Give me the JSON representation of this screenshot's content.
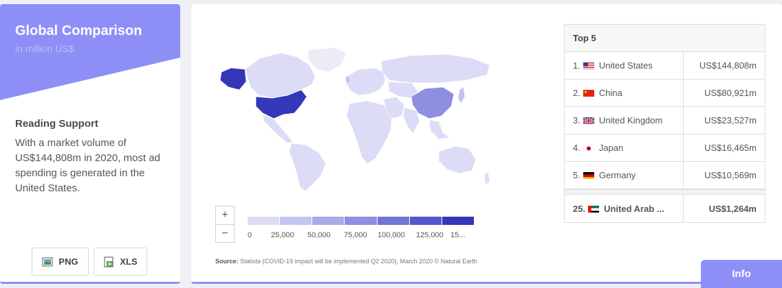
{
  "sidebar": {
    "title": "Global Comparison",
    "subtitle": "in million US$",
    "reading_title": "Reading Support",
    "reading_text": "With a market volume of US$144,808m in 2020, most ad spending is generated in the United States.",
    "png_label": "PNG",
    "xls_label": "XLS"
  },
  "map": {
    "zoom_in": "+",
    "zoom_out": "−",
    "legend_labels": [
      "0",
      "25,000",
      "50,000",
      "75,000",
      "100,000",
      "125,000",
      "15..."
    ],
    "legend_colors": [
      "#dcdcf7",
      "#c4c4f0",
      "#a9aae8",
      "#8e8fe0",
      "#7375d6",
      "#5557c9",
      "#3437b8"
    ],
    "source_label": "Source:",
    "source_text": "Statista (COVID-19 impact will be implemented Q2 2020), March 2020 © Natural Earth"
  },
  "top5": {
    "header": "Top 5",
    "rows": [
      {
        "rank": "1.",
        "country": "United States",
        "value": "US$144,808m"
      },
      {
        "rank": "2.",
        "country": "China",
        "value": "US$80,921m"
      },
      {
        "rank": "3.",
        "country": "United Kingdom",
        "value": "US$23,527m"
      },
      {
        "rank": "4.",
        "country": "Japan",
        "value": "US$16,465m"
      },
      {
        "rank": "5.",
        "country": "Germany",
        "value": "US$10,569m"
      }
    ],
    "highlight": {
      "rank": "25.",
      "country": "United Arab ...",
      "value": "US$1,264m"
    }
  },
  "info_label": "Info"
}
